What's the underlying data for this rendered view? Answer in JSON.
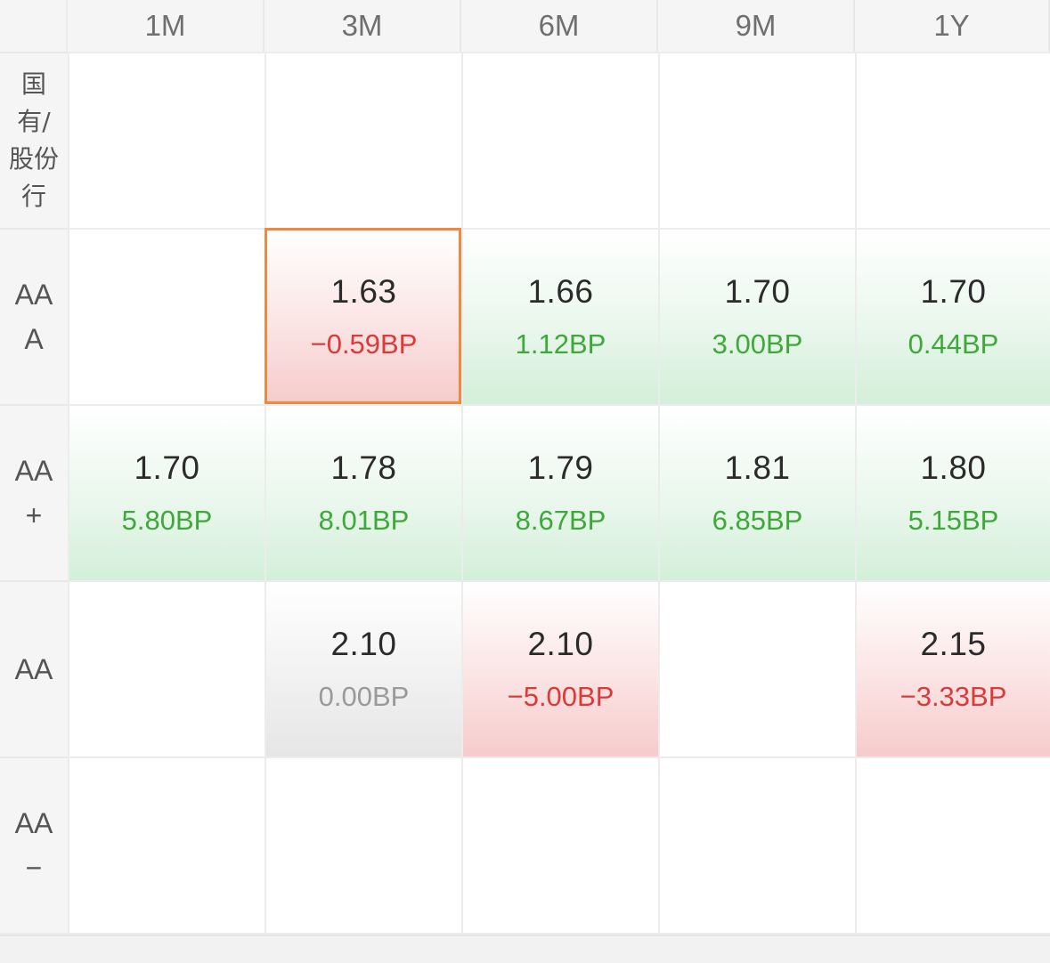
{
  "columns": [
    "1M",
    "3M",
    "6M",
    "9M",
    "1Y"
  ],
  "rows": [
    {
      "label": "国\n有/\n股份\n行",
      "cells": [
        null,
        null,
        null,
        null,
        null
      ]
    },
    {
      "label": "AA\nA",
      "cells": [
        null,
        {
          "rate": "1.63",
          "change": "−0.59BP",
          "trend": "down",
          "selected": true
        },
        {
          "rate": "1.66",
          "change": "1.12BP",
          "trend": "up"
        },
        {
          "rate": "1.70",
          "change": "3.00BP",
          "trend": "up"
        },
        {
          "rate": "1.70",
          "change": "0.44BP",
          "trend": "up"
        }
      ]
    },
    {
      "label": "AA\n+",
      "cells": [
        {
          "rate": "1.70",
          "change": "5.80BP",
          "trend": "up"
        },
        {
          "rate": "1.78",
          "change": "8.01BP",
          "trend": "up"
        },
        {
          "rate": "1.79",
          "change": "8.67BP",
          "trend": "up"
        },
        {
          "rate": "1.81",
          "change": "6.85BP",
          "trend": "up"
        },
        {
          "rate": "1.80",
          "change": "5.15BP",
          "trend": "up"
        }
      ]
    },
    {
      "label": "AA",
      "cells": [
        null,
        {
          "rate": "2.10",
          "change": "0.00BP",
          "trend": "flat"
        },
        {
          "rate": "2.10",
          "change": "−5.00BP",
          "trend": "down"
        },
        null,
        {
          "rate": "2.15",
          "change": "−3.33BP",
          "trend": "down"
        }
      ]
    },
    {
      "label": "AA\n−",
      "cells": [
        null,
        null,
        null,
        null,
        null
      ]
    }
  ],
  "colors": {
    "up": "#3fa83a",
    "down": "#dc3a38",
    "flat": "#9a9a9a",
    "selected_border": "#f0883e"
  }
}
